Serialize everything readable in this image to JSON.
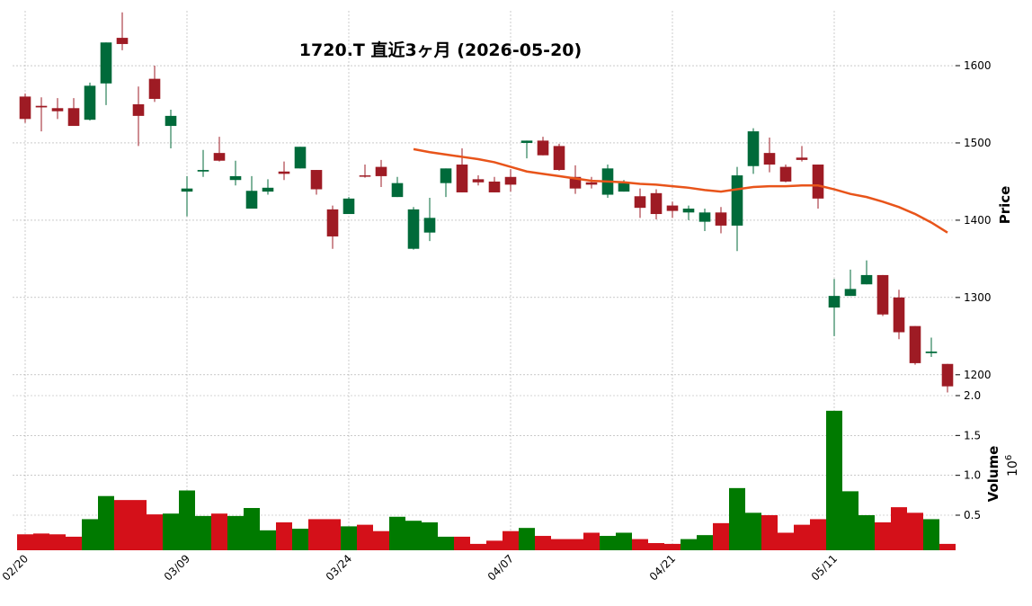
{
  "chart_data": {
    "type": "candlestick",
    "title": "1720.T  直近3ヶ月  (2026-05-20)",
    "categories": [
      "02/20",
      null,
      null,
      null,
      null,
      null,
      null,
      null,
      null,
      null,
      "03/09",
      null,
      null,
      null,
      null,
      null,
      null,
      null,
      null,
      null,
      "03/24",
      null,
      null,
      null,
      null,
      null,
      null,
      null,
      null,
      null,
      "04/07",
      null,
      null,
      null,
      null,
      null,
      null,
      null,
      null,
      null,
      "04/21",
      null,
      null,
      null,
      null,
      null,
      null,
      null,
      null,
      null,
      "05/11",
      null,
      null,
      null,
      null,
      null,
      null,
      null
    ],
    "open": [
      1560,
      1548,
      1545,
      1545,
      1530,
      1577,
      1636,
      1550,
      1583,
      1522,
      1437,
      1463,
      1487,
      1452,
      1415,
      1437,
      1463,
      1467,
      1465,
      1414,
      1408,
      1458,
      1469,
      1430,
      1363,
      1384,
      1448,
      1472,
      1453,
      1450,
      1456,
      1500,
      1503,
      1496,
      1456,
      1449,
      1433,
      1437,
      1431,
      1435,
      1419,
      1410,
      1398,
      1410,
      1393,
      1470,
      1487,
      1469,
      1481,
      1472,
      1287,
      1302,
      1317,
      1329,
      1300,
      1263,
      1228,
      1214
    ],
    "high": [
      1564,
      1559,
      1558,
      1558,
      1578,
      1630,
      1669,
      1573,
      1600,
      1543,
      1457,
      1491,
      1508,
      1477,
      1457,
      1453,
      1476,
      1495,
      1465,
      1419,
      1430,
      1472,
      1478,
      1456,
      1417,
      1429,
      1467,
      1493,
      1458,
      1456,
      1466,
      1503,
      1508,
      1499,
      1471,
      1456,
      1472,
      1452,
      1441,
      1440,
      1424,
      1419,
      1415,
      1417,
      1469,
      1519,
      1507,
      1472,
      1496,
      1472,
      1324,
      1336,
      1348,
      1329,
      1310,
      1263,
      1248,
      1214
    ],
    "low": [
      1526,
      1515,
      1531,
      1522,
      1529,
      1549,
      1620,
      1496,
      1553,
      1493,
      1405,
      1456,
      1476,
      1445,
      1415,
      1433,
      1452,
      1467,
      1433,
      1363,
      1408,
      1455,
      1443,
      1430,
      1362,
      1373,
      1430,
      1436,
      1445,
      1436,
      1437,
      1480,
      1484,
      1464,
      1434,
      1441,
      1429,
      1437,
      1403,
      1401,
      1403,
      1400,
      1386,
      1383,
      1360,
      1460,
      1462,
      1449,
      1476,
      1415,
      1250,
      1302,
      1317,
      1276,
      1246,
      1213,
      1223,
      1177
    ],
    "close": [
      1531,
      1546,
      1541,
      1522,
      1574,
      1630,
      1628,
      1535,
      1557,
      1535,
      1441,
      1465,
      1477,
      1457,
      1438,
      1442,
      1460,
      1495,
      1440,
      1379,
      1428,
      1457,
      1457,
      1448,
      1414,
      1403,
      1467,
      1436,
      1449,
      1436,
      1446,
      1503,
      1484,
      1465,
      1441,
      1446,
      1467,
      1448,
      1416,
      1408,
      1412,
      1415,
      1410,
      1393,
      1458,
      1515,
      1472,
      1450,
      1478,
      1428,
      1302,
      1311,
      1329,
      1278,
      1255,
      1215,
      1230,
      1185
    ],
    "volume": [
      0.26,
      0.27,
      0.26,
      0.23,
      0.45,
      0.74,
      0.69,
      0.69,
      0.51,
      0.52,
      0.81,
      0.49,
      0.52,
      0.49,
      0.59,
      0.31,
      0.41,
      0.33,
      0.45,
      0.45,
      0.36,
      0.38,
      0.3,
      0.48,
      0.43,
      0.41,
      0.23,
      0.23,
      0.14,
      0.18,
      0.3,
      0.34,
      0.24,
      0.2,
      0.2,
      0.28,
      0.24,
      0.28,
      0.2,
      0.15,
      0.14,
      0.2,
      0.25,
      0.4,
      0.84,
      0.53,
      0.5,
      0.28,
      0.38,
      0.45,
      1.81,
      0.8,
      0.5,
      0.41,
      0.6,
      0.53,
      0.45,
      0.14
    ],
    "ma": [
      null,
      null,
      null,
      null,
      null,
      null,
      null,
      null,
      null,
      null,
      null,
      null,
      null,
      null,
      null,
      null,
      null,
      null,
      null,
      null,
      null,
      null,
      null,
      null,
      1492,
      1488,
      1485,
      1482,
      1479,
      1475,
      1469,
      1463,
      1460,
      1457,
      1454,
      1451,
      1450,
      1449,
      1447,
      1446,
      1444,
      1442,
      1439,
      1437,
      1440,
      1443,
      1444,
      1444,
      1445,
      1445,
      1440,
      1434,
      1430,
      1424,
      1417,
      1408,
      1397,
      1384
    ],
    "ylim": [
      1173,
      1671
    ],
    "yticks": [
      1200,
      1300,
      1400,
      1500,
      1600
    ],
    "y_label": "Price",
    "volume_ylim": [
      0.06,
      2.0
    ],
    "volume_yticks": [
      0.5,
      {
        "value": 1.0,
        "label": "1.0"
      },
      1.5,
      {
        "value": 2.0,
        "label": "2.0"
      }
    ],
    "volume_label": "Volume",
    "volume_offset": {
      "base": "10",
      "exponent": "6"
    },
    "up_color": "#006a3a",
    "down_color": "#9e1b24",
    "volume_up_color": "#007a00",
    "volume_down_color": "#d41019",
    "ma_color": "#e8541a",
    "grid": true
  }
}
